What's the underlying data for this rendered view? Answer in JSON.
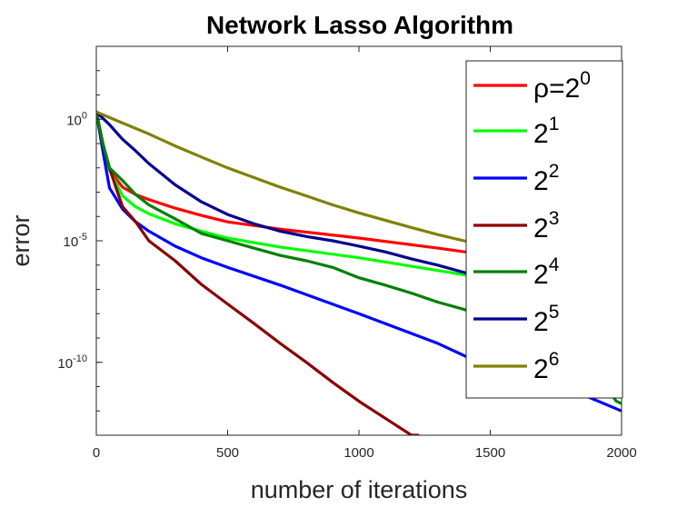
{
  "chart_data": {
    "type": "line",
    "title": "Network Lasso Algorithm",
    "xlabel": "number of iterations",
    "ylabel": "error",
    "x_scale": "linear",
    "y_scale": "log",
    "xlim": [
      0,
      2000
    ],
    "ylim": [
      1e-13,
      1000.0
    ],
    "xticks": [
      {
        "value": 0,
        "label": "0"
      },
      {
        "value": 500,
        "label": "500"
      },
      {
        "value": 1000,
        "label": "1000"
      },
      {
        "value": 1500,
        "label": "1500"
      },
      {
        "value": 2000,
        "label": "2000"
      }
    ],
    "yticks": [
      {
        "value": 1,
        "base": "10",
        "exp": "0"
      },
      {
        "value": 1e-05,
        "base": "10",
        "exp": "-5"
      },
      {
        "value": 1e-10,
        "base": "10",
        "exp": "-10"
      }
    ],
    "grid": false,
    "legend_position": "top-right",
    "series": [
      {
        "name": "ρ=2",
        "sup": "0",
        "color": "#ff0000",
        "x": [
          0,
          25,
          50,
          100,
          150,
          200,
          300,
          400,
          500,
          700,
          1000,
          1300,
          1600,
          2000
        ],
        "y": [
          2.0,
          0.1,
          0.008,
          0.0016,
          0.0008,
          0.0005,
          0.00022,
          0.00011,
          6e-05,
          3e-05,
          1.3e-05,
          5e-06,
          1.8e-06,
          5e-07
        ]
      },
      {
        "name": "2",
        "sup": "1",
        "color": "#00ff00",
        "x": [
          0,
          25,
          50,
          100,
          150,
          200,
          300,
          400,
          500,
          700,
          1000,
          1300,
          1600,
          2000
        ],
        "y": [
          2.0,
          0.1,
          0.008,
          0.0007,
          0.00025,
          0.00013,
          5e-05,
          2.5e-05,
          1.3e-05,
          5.5e-06,
          2e-06,
          6e-07,
          1.8e-07,
          2e-08
        ]
      },
      {
        "name": "2",
        "sup": "2",
        "color": "#0000ff",
        "x": [
          0,
          25,
          50,
          100,
          150,
          200,
          300,
          400,
          500,
          700,
          1000,
          1300,
          1500,
          1800,
          2000
        ],
        "y": [
          2.0,
          0.05,
          0.0015,
          0.0002,
          6e-05,
          2.5e-05,
          6e-06,
          2e-06,
          8e-07,
          1.5e-07,
          1e-08,
          6e-10,
          6e-11,
          8e-12,
          1e-12
        ]
      },
      {
        "name": "2",
        "sup": "3",
        "color": "#8b0000",
        "x": [
          0,
          25,
          50,
          75,
          100,
          150,
          200,
          300,
          400,
          500,
          600,
          700,
          800,
          900,
          1000,
          1100,
          1200,
          1225
        ],
        "y": [
          2.0,
          0.1,
          0.01,
          0.0015,
          0.00025,
          6e-05,
          1e-05,
          1.5e-06,
          1.6e-07,
          2.5e-08,
          4e-09,
          6e-10,
          1e-10,
          1.5e-11,
          2.5e-12,
          5e-13,
          1e-13,
          1e-13
        ]
      },
      {
        "name": "2",
        "sup": "4",
        "color": "#008000",
        "x": [
          0,
          25,
          50,
          100,
          150,
          200,
          300,
          400,
          500,
          600,
          700,
          800,
          900,
          1000,
          1100,
          1200,
          1300,
          1400,
          1500,
          1600,
          1700,
          1800,
          1900,
          1980,
          2000
        ],
        "y": [
          2.0,
          0.1,
          0.01,
          0.003,
          0.0008,
          0.0003,
          8e-05,
          2e-05,
          1e-05,
          5e-06,
          2.5e-06,
          1.5e-06,
          8e-07,
          3e-07,
          1.5e-07,
          7e-08,
          3e-08,
          1.5e-08,
          6e-09,
          2e-09,
          6e-10,
          1.5e-10,
          4e-11,
          2.5e-12,
          2e-12
        ]
      },
      {
        "name": "2",
        "sup": "5",
        "color": "#00008b",
        "x": [
          0,
          50,
          100,
          150,
          200,
          300,
          400,
          500,
          600,
          700,
          800,
          900,
          1000,
          1100,
          1200,
          1300,
          1400,
          1500,
          1600,
          1700,
          1800,
          1900,
          2000
        ],
        "y": [
          2.0,
          0.6,
          0.15,
          0.05,
          0.015,
          0.002,
          0.0004,
          0.00012,
          5e-05,
          2.5e-05,
          1.5e-05,
          1e-05,
          6e-06,
          3.5e-06,
          1.8e-06,
          1e-06,
          5e-07,
          2.5e-07,
          1.3e-07,
          6e-08,
          3e-08,
          2e-08,
          9e-09
        ]
      },
      {
        "name": "2",
        "sup": "6",
        "color": "#808000",
        "x": [
          0,
          100,
          200,
          300,
          400,
          500,
          600,
          700,
          800,
          900,
          1000,
          1100,
          1200,
          1300,
          1400,
          1500,
          1600,
          1700,
          1800,
          1900,
          2000
        ],
        "y": [
          2.0,
          0.7,
          0.25,
          0.08,
          0.028,
          0.01,
          0.004,
          0.0016,
          0.0007,
          0.0003,
          0.00014,
          7e-05,
          3.5e-05,
          1.8e-05,
          1e-05,
          5.5e-06,
          3e-06,
          1.8e-06,
          1.1e-06,
          7e-07,
          4.5e-07
        ]
      }
    ]
  }
}
